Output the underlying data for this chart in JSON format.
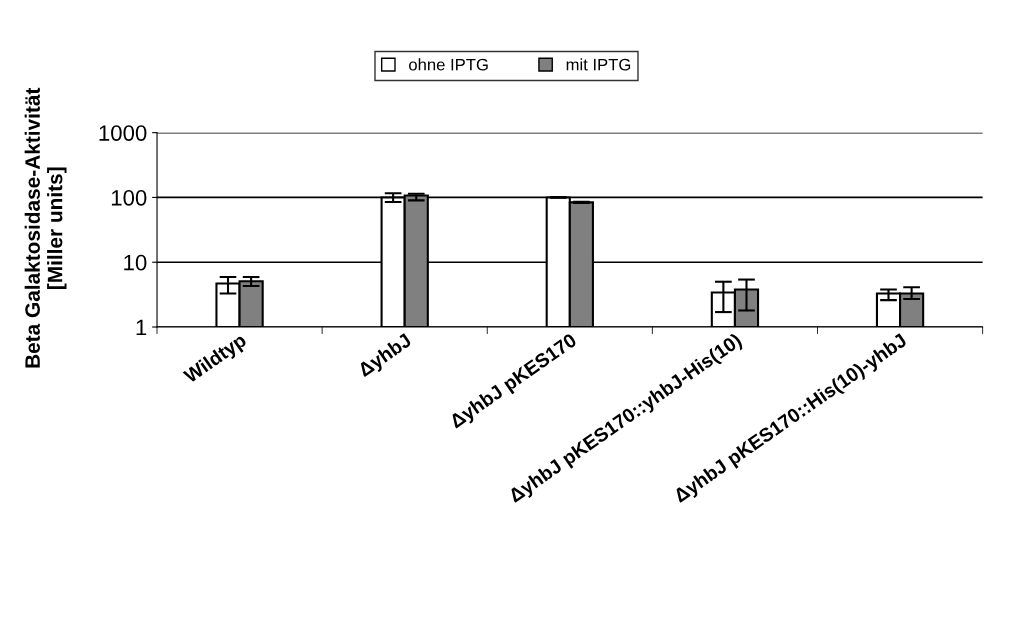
{
  "chart_data": {
    "type": "bar",
    "ylabel": "Beta Galaktosidase-Aktivität\n[Miller units]",
    "categories": [
      "Wildtyp",
      "ΔyhbJ",
      "ΔyhbJ pKES170",
      "ΔyhbJ pKES170::yhbJ-His(10)",
      "ΔyhbJ pKES170::His(10)-yhbJ"
    ],
    "series": [
      {
        "name": "ohne IPTG",
        "color": "#ffffff",
        "values": [
          4.7,
          100,
          100,
          3.4,
          3.3
        ],
        "errors": [
          [
            3.3,
            5.9
          ],
          [
            85,
            116
          ],
          [
            99,
            101
          ],
          [
            1.7,
            5.0
          ],
          [
            2.6,
            3.8
          ]
        ]
      },
      {
        "name": "mit IPTG",
        "color": "#808080",
        "values": [
          5.1,
          107,
          84,
          3.8,
          3.3
        ],
        "errors": [
          [
            4.3,
            5.9
          ],
          [
            90,
            114
          ],
          [
            82,
            86
          ],
          [
            1.8,
            5.4
          ],
          [
            2.7,
            4.1
          ]
        ]
      }
    ],
    "log": "y",
    "ylim": [
      1,
      1000
    ],
    "yticks": [
      1,
      10,
      100,
      1000
    ],
    "grid": "y",
    "legend": "top"
  }
}
